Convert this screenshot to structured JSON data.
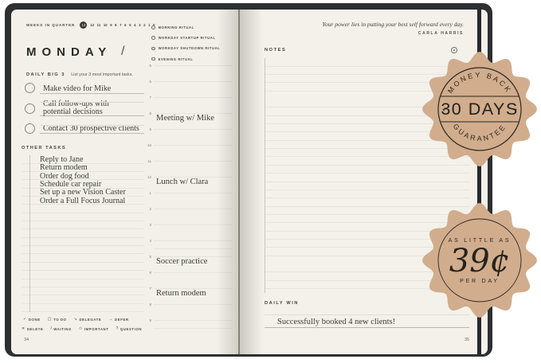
{
  "left_page": {
    "weeks": {
      "label": "WEEKS IN QUARTER",
      "current": "13",
      "remaining": [
        "12",
        "11",
        "10",
        "9",
        "8",
        "7",
        "6",
        "5",
        "4",
        "3",
        "2",
        "1",
        "0"
      ]
    },
    "day_title": "MONDAY",
    "day_slash": "/",
    "big3_label": "DAILY BIG 3",
    "big3_hint": "List your 3 most important tasks.",
    "big3_tasks": [
      "Make video for Mike",
      "Call follow-ups with potential decisions",
      "Contact 30 prospective clients"
    ],
    "other_tasks_label": "OTHER TASKS",
    "other_tasks": [
      "Reply to Jane",
      "Return modem",
      "Order dog food",
      "Schedule car repair",
      "Set up a new Vision Caster",
      "Order a Full Focus Journal"
    ],
    "rituals": [
      "MORNING RITUAL",
      "WORKDAY STARTUP RITUAL",
      "WORKDAY SHUTDOWN RITUAL",
      "EVENING RITUAL"
    ],
    "schedule": [
      {
        "hour": "5",
        "entry": ""
      },
      {
        "hour": "6",
        "entry": ""
      },
      {
        "hour": "7",
        "entry": ""
      },
      {
        "hour": "8",
        "entry": "Meeting w/ Mike"
      },
      {
        "hour": "9",
        "entry": ""
      },
      {
        "hour": "10",
        "entry": ""
      },
      {
        "hour": "11",
        "entry": ""
      },
      {
        "hour": "12",
        "entry": "Lunch w/ Clara"
      },
      {
        "hour": "1",
        "entry": ""
      },
      {
        "hour": "2",
        "entry": ""
      },
      {
        "hour": "3",
        "entry": ""
      },
      {
        "hour": "4",
        "entry": ""
      },
      {
        "hour": "5",
        "entry": "Soccer practice"
      },
      {
        "hour": "6",
        "entry": ""
      },
      {
        "hour": "7",
        "entry": "Return modem"
      },
      {
        "hour": "8",
        "entry": ""
      },
      {
        "hour": "9",
        "entry": ""
      }
    ],
    "legend_row1": [
      {
        "symbol": "✓",
        "label": "DONE"
      },
      {
        "symbol": "▢",
        "label": "TO DO"
      },
      {
        "symbol": "↘",
        "label": "DELEGATE"
      },
      {
        "symbol": "→",
        "label": "DEFER"
      }
    ],
    "legend_row2": [
      {
        "symbol": "✕",
        "label": "DELETE"
      },
      {
        "symbol": "/",
        "label": "WAITING"
      },
      {
        "symbol": "✩",
        "label": "IMPORTANT"
      },
      {
        "symbol": "?",
        "label": "QUESTION"
      }
    ],
    "page_number": "34"
  },
  "right_page": {
    "quote": "Your power lies in putting your best self forward every day.",
    "quote_author": "CARLA HARRIS",
    "notes_label": "NOTES",
    "daily_win_label": "DAILY WIN",
    "daily_win_entry": "Successfully booked 4 new clients!",
    "page_number": "35"
  },
  "badges": [
    {
      "arc_top": "MONEY BACK",
      "center": "30 DAYS",
      "arc_bottom": "GUARANTEE",
      "side_mark": "✦"
    },
    {
      "top": "AS LITTLE AS",
      "center": "39¢",
      "bottom": "PER DAY"
    }
  ],
  "colors": {
    "badge_tan": "#d1ad8d",
    "cover": "#2d2f30",
    "page": "#f2f0e9",
    "rule_line": "#dbd8cd",
    "ink": "#45433c",
    "handwriting": "#3e3d38"
  }
}
